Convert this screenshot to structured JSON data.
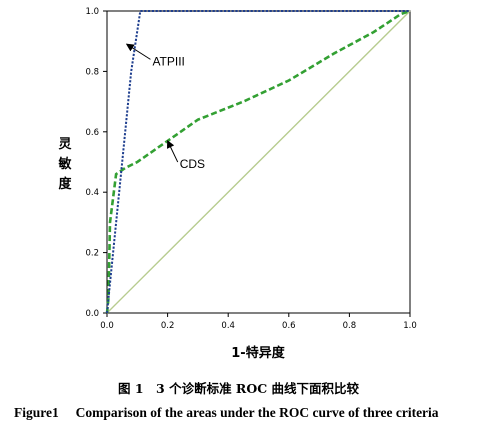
{
  "chart_data": {
    "type": "line",
    "xlabel": "1-特异度",
    "ylabel": "灵敏度",
    "xlim": [
      0,
      1
    ],
    "ylim": [
      0,
      1
    ],
    "x_ticks": [
      "0.0",
      "0.2",
      "0.4",
      "0.6",
      "0.8",
      "1.0"
    ],
    "y_ticks": [
      "0.0",
      "0.2",
      "0.4",
      "0.6",
      "0.8",
      "1.0"
    ],
    "grid": false,
    "series": [
      {
        "name": "ATPIII",
        "color": "#1f3f8f",
        "style": "dotted",
        "x": [
          0.0,
          0.02,
          0.05,
          0.08,
          0.11,
          1.0
        ],
        "y": [
          0.0,
          0.2,
          0.5,
          0.8,
          1.0,
          1.0
        ]
      },
      {
        "name": "CDS",
        "color": "#33a033",
        "style": "dashed",
        "x": [
          0.0,
          0.005,
          0.01,
          0.03,
          0.06,
          0.1,
          0.2,
          0.3,
          0.45,
          0.6,
          0.75,
          0.88,
          0.94,
          0.97,
          1.0
        ],
        "y": [
          0.0,
          0.05,
          0.3,
          0.46,
          0.48,
          0.5,
          0.57,
          0.64,
          0.7,
          0.77,
          0.86,
          0.93,
          0.97,
          0.99,
          1.0
        ]
      },
      {
        "name": "",
        "color": "#b7cc8f",
        "style": "solid",
        "x": [
          0,
          1
        ],
        "y": [
          0,
          1
        ]
      }
    ],
    "annotations": [
      {
        "text": "ATPIII",
        "arrow_to": [
          0.065,
          0.89
        ],
        "text_at": [
          0.15,
          0.82
        ]
      },
      {
        "text": "CDS",
        "arrow_to": [
          0.2,
          0.57
        ],
        "text_at": [
          0.24,
          0.48
        ]
      }
    ]
  },
  "caption": {
    "chinese": "图 1　3 个诊断标准 ROC 曲线下面积比较",
    "english": "Figure1　 Comparison of the areas under the ROC curve of three criteria"
  }
}
